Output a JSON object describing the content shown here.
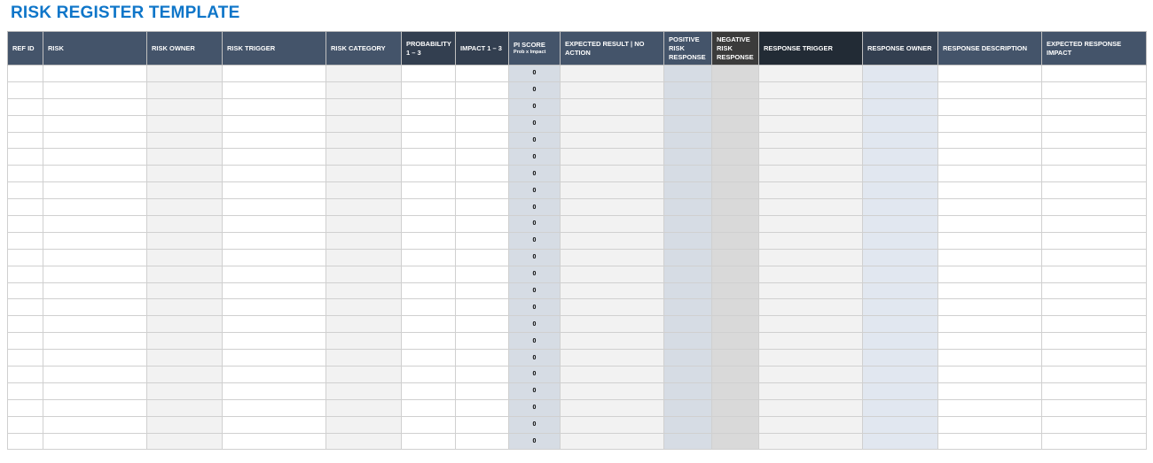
{
  "title": "RISK REGISTER TEMPLATE",
  "columns": [
    {
      "label": "REF ID"
    },
    {
      "label": "RISK"
    },
    {
      "label": "RISK OWNER"
    },
    {
      "label": "RISK TRIGGER"
    },
    {
      "label": "RISK CATEGORY"
    },
    {
      "label": "PROBABILITY 1 – 3"
    },
    {
      "label": "IMPACT 1 – 3"
    },
    {
      "label": "PI SCORE",
      "sub": "Prob x Impact"
    },
    {
      "label": "EXPECTED RESULT | NO ACTION"
    },
    {
      "label": "POSITIVE RISK RESPONSE"
    },
    {
      "label": "NEGATIVE RISK RESPONSE"
    },
    {
      "label": "RESPONSE TRIGGER"
    },
    {
      "label": "RESPONSE OWNER"
    },
    {
      "label": "RESPONSE DESCRIPTION"
    },
    {
      "label": "EXPECTED RESPONSE IMPACT"
    }
  ],
  "rows": [
    "0",
    "0",
    "0",
    "0",
    "0",
    "0",
    "0",
    "0",
    "0",
    "0",
    "0",
    "0",
    "0",
    "0",
    "0",
    "0",
    "0",
    "0",
    "0",
    "0",
    "0",
    "0",
    "0"
  ],
  "colors": {
    "title": "#0f76c9",
    "header": "#44546a",
    "header_dark": "#333f50",
    "pi_fill": "#d6dce4"
  }
}
